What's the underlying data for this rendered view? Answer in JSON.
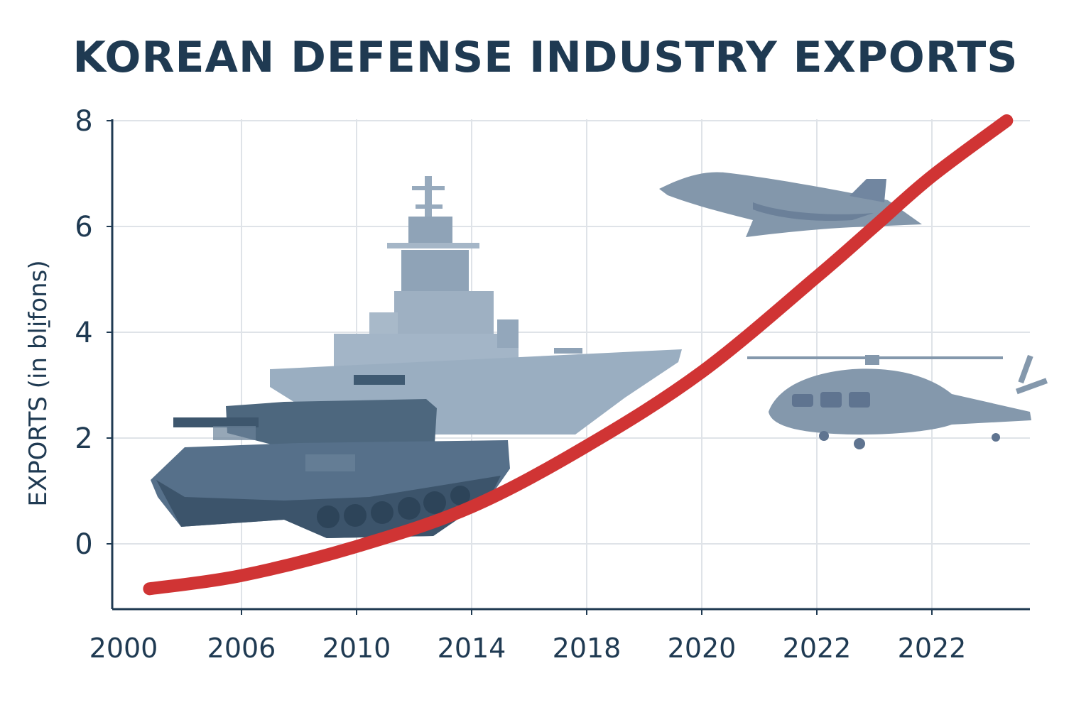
{
  "chart_data": {
    "type": "line",
    "title": "KOREAN DEFENSE INDUSTRY EXPORTS",
    "xlabel": "",
    "ylabel": "EXPORTS (in bli̱fons)",
    "categories": [
      "2000",
      "2006",
      "2010",
      "2014",
      "2018",
      "2020",
      "2022",
      "2022"
    ],
    "yticks": [
      "0",
      "2",
      "4",
      "6",
      "8"
    ],
    "ylim": [
      -1.2,
      8
    ],
    "grid": true,
    "series": [
      {
        "name": "Exports",
        "color": "#d03434",
        "points": [
          {
            "x": 0.2,
            "y": -0.85
          },
          {
            "x": 1.0,
            "y": -0.6
          },
          {
            "x": 2.0,
            "y": -0.05
          },
          {
            "x": 3.0,
            "y": 0.7
          },
          {
            "x": 4.0,
            "y": 1.85
          },
          {
            "x": 5.0,
            "y": 3.25
          },
          {
            "x": 6.0,
            "y": 5.05
          },
          {
            "x": 6.5,
            "y": 6.0
          },
          {
            "x": 7.0,
            "y": 6.95
          },
          {
            "x": 7.65,
            "y": 8.0
          }
        ]
      }
    ],
    "illustrations": [
      "ship-icon",
      "tank-icon",
      "fighter-jet-icon",
      "helicopter-icon"
    ]
  }
}
